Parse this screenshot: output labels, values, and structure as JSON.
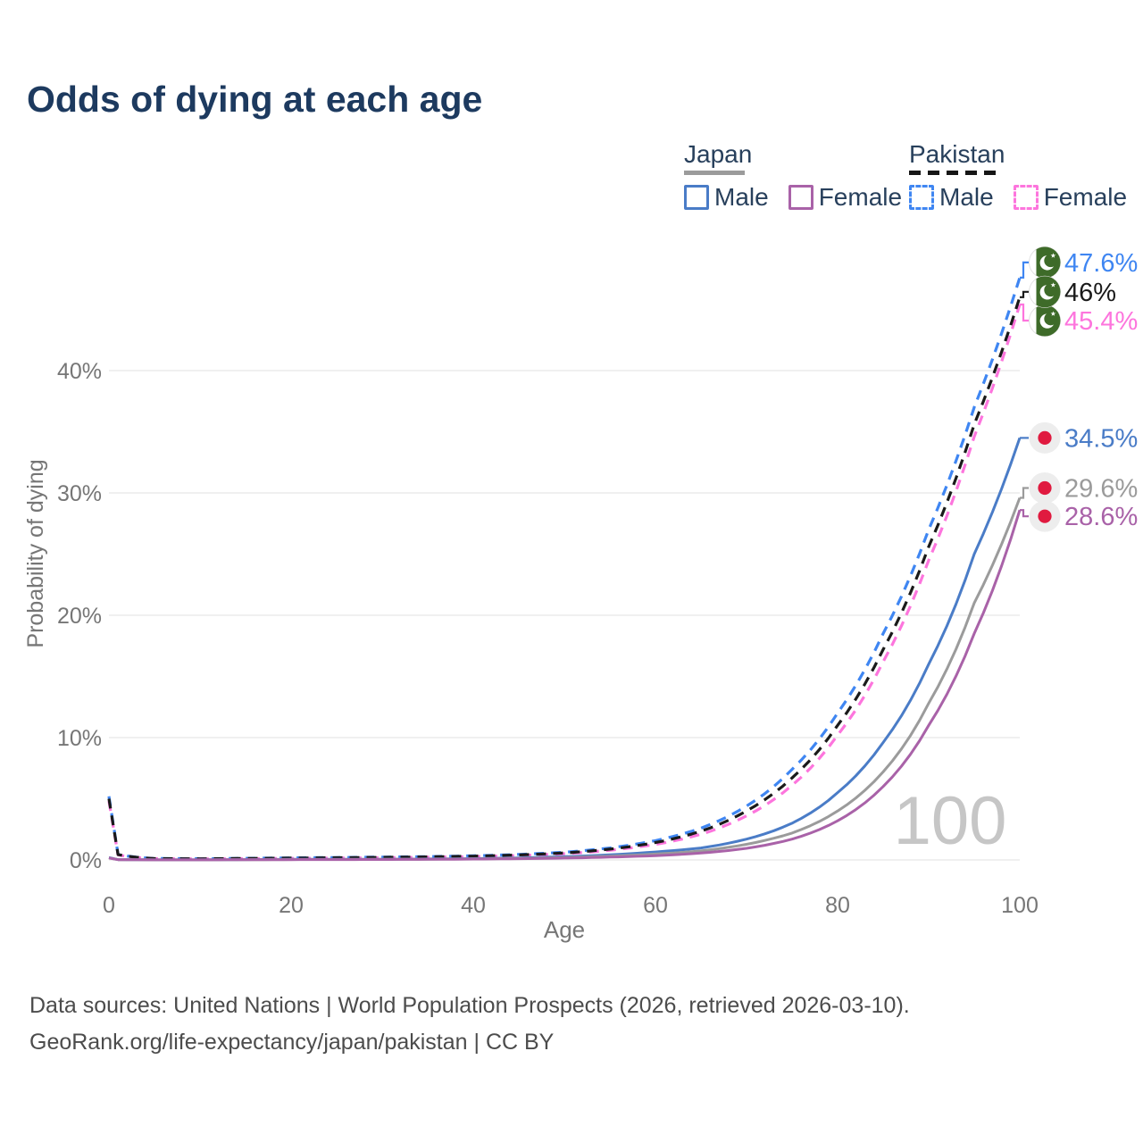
{
  "title": "Odds of dying at each age",
  "legend": {
    "groups": [
      {
        "id": "japan",
        "label": "Japan",
        "line_style": "solid",
        "items": [
          {
            "id": "japan-male",
            "label": "Male",
            "color": "#4a7cc7"
          },
          {
            "id": "japan-female",
            "label": "Female",
            "color": "#c27abc"
          }
        ]
      },
      {
        "id": "pakistan",
        "label": "Pakistan",
        "line_style": "dashed",
        "items": [
          {
            "id": "pakistan-male",
            "label": "Male",
            "color": "#3f86f2"
          },
          {
            "id": "pakistan-female",
            "label": "Female",
            "color": "#fd75dd"
          }
        ]
      }
    ]
  },
  "watermark": "100",
  "footer": {
    "line1": "Data sources: United Nations | World Population Prospects (2026, retrieved 2026-03-10).",
    "line2": "GeoRank.org/life-expectancy/japan/pakistan | CC BY"
  },
  "chart_data": {
    "type": "line",
    "title": "Odds of dying at each age",
    "xlabel": "Age",
    "ylabel": "Probability of dying",
    "xlim": [
      0,
      100
    ],
    "ylim_percent": [
      0,
      48
    ],
    "grid": "horizontal",
    "xticks": [
      {
        "value": 0,
        "label": "0"
      },
      {
        "value": 20,
        "label": "20"
      },
      {
        "value": 40,
        "label": "40"
      },
      {
        "value": 60,
        "label": "60"
      },
      {
        "value": 80,
        "label": "80"
      },
      {
        "value": 100,
        "label": "100"
      }
    ],
    "yticks": [
      {
        "value": 0,
        "label": "0%"
      },
      {
        "value": 10,
        "label": "10%"
      },
      {
        "value": 20,
        "label": "20%"
      },
      {
        "value": 30,
        "label": "30%"
      },
      {
        "value": 40,
        "label": "40%"
      }
    ],
    "ages": [
      0,
      1,
      5,
      10,
      15,
      20,
      25,
      30,
      35,
      40,
      45,
      50,
      55,
      60,
      65,
      70,
      75,
      80,
      85,
      90,
      95,
      100
    ],
    "series": [
      {
        "id": "pakistan-male",
        "country": "Pakistan",
        "sex": "Male",
        "color": "#3f86f2",
        "style": "dashed",
        "flag": "pakistan",
        "end_label": "47.6%",
        "end_value": 47.6,
        "values_percent": [
          5.2,
          0.45,
          0.12,
          0.1,
          0.13,
          0.17,
          0.2,
          0.23,
          0.27,
          0.34,
          0.45,
          0.63,
          0.98,
          1.58,
          2.6,
          4.4,
          7.4,
          12.0,
          18.5,
          27.0,
          37.0,
          47.6
        ]
      },
      {
        "id": "pakistan-female",
        "country": "Pakistan",
        "sex": "Female",
        "color": "#fd75dd",
        "style": "dashed",
        "flag": "pakistan",
        "end_label": "45.4%",
        "end_value": 45.4,
        "values_percent": [
          4.8,
          0.41,
          0.1,
          0.08,
          0.1,
          0.13,
          0.15,
          0.18,
          0.22,
          0.27,
          0.36,
          0.51,
          0.79,
          1.27,
          2.1,
          3.6,
          6.1,
          10.2,
          16.2,
          24.5,
          34.6,
          45.4
        ]
      },
      {
        "id": "pakistan-total",
        "country": "Pakistan",
        "sex": "Both",
        "color": "#1a1a1a",
        "style": "dashed",
        "flag": "pakistan",
        "end_label": "46%",
        "end_value": 46.0,
        "values_percent": [
          5.0,
          0.43,
          0.11,
          0.09,
          0.12,
          0.15,
          0.18,
          0.21,
          0.25,
          0.31,
          0.41,
          0.57,
          0.88,
          1.42,
          2.35,
          4.0,
          6.7,
          11.0,
          17.2,
          25.6,
          35.6,
          46.0
        ]
      },
      {
        "id": "japan-male",
        "country": "Japan",
        "sex": "Male",
        "color": "#4a7cc7",
        "style": "solid",
        "flag": "japan",
        "end_label": "34.5%",
        "end_value": 34.5,
        "values_percent": [
          0.19,
          0.03,
          0.01,
          0.01,
          0.03,
          0.05,
          0.05,
          0.06,
          0.08,
          0.11,
          0.17,
          0.27,
          0.42,
          0.65,
          0.98,
          1.7,
          3.0,
          5.5,
          9.6,
          16.0,
          25.0,
          34.5
        ]
      },
      {
        "id": "japan-total",
        "country": "Japan",
        "sex": "Both",
        "color": "#9b9b9b",
        "style": "solid",
        "flag": "japan",
        "end_label": "29.6%",
        "end_value": 29.6,
        "values_percent": [
          0.17,
          0.025,
          0.009,
          0.009,
          0.02,
          0.035,
          0.04,
          0.05,
          0.06,
          0.09,
          0.13,
          0.2,
          0.31,
          0.48,
          0.74,
          1.28,
          2.2,
          4.0,
          7.2,
          12.8,
          21.0,
          29.6
        ]
      },
      {
        "id": "japan-female",
        "country": "Japan",
        "sex": "Female",
        "color": "#a962a8",
        "style": "solid",
        "flag": "japan",
        "end_label": "28.6%",
        "end_value": 28.6,
        "values_percent": [
          0.16,
          0.02,
          0.008,
          0.008,
          0.015,
          0.025,
          0.03,
          0.035,
          0.05,
          0.07,
          0.1,
          0.15,
          0.23,
          0.35,
          0.56,
          0.95,
          1.7,
          3.2,
          6.0,
          11.0,
          18.5,
          28.6
        ]
      }
    ],
    "flag_colors": {
      "pakistan_green": "#3e6b29",
      "japan_red": "#e01a3f",
      "badge_background": "#ededed"
    }
  }
}
